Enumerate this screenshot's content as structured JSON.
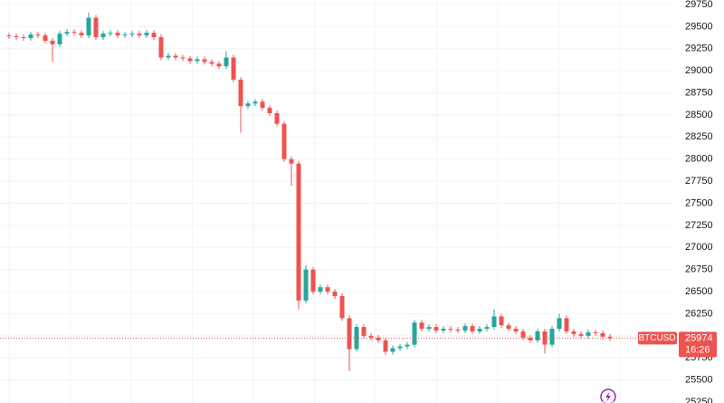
{
  "chart_data": {
    "type": "candlestick",
    "open": [
      29400,
      29390,
      29380,
      29370,
      29410,
      29400,
      29340,
      29300,
      29420,
      29440,
      29430,
      29400,
      29600,
      29380,
      29420,
      29430,
      29400,
      29410,
      29420,
      29400,
      29430,
      29380,
      29150,
      29170,
      29150,
      29140,
      29110,
      29130,
      29100,
      29080,
      29050,
      29150,
      28900,
      28600,
      28630,
      28650,
      28580,
      28520,
      28400,
      28000,
      27950,
      26400,
      26750,
      26500,
      26550,
      26500,
      26450,
      26200,
      25850,
      26100,
      26000,
      25980,
      25950,
      25820,
      25860,
      25880,
      25900,
      26150,
      26080,
      26100,
      26060,
      26080,
      26070,
      26060,
      26110,
      26050,
      26080,
      26100,
      26220,
      26120,
      26080,
      26050,
      25980,
      25950,
      26050,
      25900,
      26080,
      26200,
      26050,
      26020,
      26000,
      26040,
      26030,
      25990
    ],
    "high": [
      29430,
      29420,
      29410,
      29440,
      29440,
      29430,
      29370,
      29450,
      29470,
      29470,
      29460,
      29660,
      29630,
      29450,
      29460,
      29460,
      29440,
      29450,
      29450,
      29460,
      29460,
      29410,
      29200,
      29200,
      29180,
      29170,
      29160,
      29160,
      29130,
      29110,
      29220,
      29180,
      28930,
      28660,
      28680,
      28680,
      28610,
      28550,
      28430,
      28030,
      27980,
      26800,
      26780,
      26580,
      26580,
      26530,
      26480,
      26230,
      26130,
      26130,
      26030,
      26010,
      25980,
      25890,
      25910,
      25930,
      26180,
      26180,
      26130,
      26130,
      26110,
      26110,
      26100,
      26140,
      26140,
      26110,
      26130,
      26300,
      26250,
      26150,
      26110,
      26080,
      26010,
      26080,
      26080,
      26110,
      26250,
      26230,
      26080,
      26050,
      26070,
      26070,
      26060,
      26020
    ],
    "low": [
      29360,
      29350,
      29340,
      29340,
      29370,
      29310,
      29100,
      29270,
      29390,
      29400,
      29370,
      29370,
      29350,
      29350,
      29390,
      29370,
      29370,
      29380,
      29370,
      29370,
      29350,
      29120,
      29120,
      29120,
      29110,
      29080,
      29080,
      29070,
      29050,
      29020,
      29020,
      28870,
      28300,
      28570,
      28600,
      28550,
      28490,
      28370,
      27970,
      27700,
      26300,
      26370,
      26470,
      26470,
      26470,
      26420,
      26170,
      25600,
      25820,
      25970,
      25950,
      25920,
      25790,
      25790,
      25830,
      25850,
      25870,
      26050,
      26050,
      26030,
      26030,
      26040,
      26030,
      26030,
      26020,
      26020,
      26050,
      26070,
      26090,
      26050,
      26020,
      25950,
      25920,
      25920,
      25800,
      25870,
      26050,
      26020,
      25990,
      25970,
      25970,
      26000,
      25960,
      25940
    ],
    "close": [
      29390,
      29380,
      29370,
      29410,
      29400,
      29340,
      29300,
      29420,
      29440,
      29430,
      29400,
      29600,
      29380,
      29420,
      29430,
      29400,
      29410,
      29420,
      29400,
      29430,
      29380,
      29150,
      29170,
      29150,
      29140,
      29110,
      29130,
      29100,
      29080,
      29050,
      29150,
      28900,
      28600,
      28630,
      28650,
      28580,
      28520,
      28400,
      28000,
      27950,
      26400,
      26750,
      26500,
      26550,
      26500,
      26450,
      26200,
      25850,
      26100,
      26000,
      25980,
      25950,
      25820,
      25860,
      25880,
      25900,
      26150,
      26080,
      26100,
      26060,
      26080,
      26070,
      26060,
      26110,
      26050,
      26080,
      26100,
      26220,
      26120,
      26080,
      26050,
      25980,
      25950,
      26050,
      25900,
      26080,
      26200,
      26050,
      26020,
      26000,
      26040,
      26030,
      25990,
      25974
    ],
    "up_color": "#26a69a",
    "down_color": "#ef5350",
    "ylim": [
      25240,
      29801
    ],
    "yticks": [
      25250,
      25500,
      25750,
      26000,
      26250,
      26500,
      26750,
      27000,
      27250,
      27500,
      27750,
      28000,
      28250,
      28500,
      28750,
      29000,
      29250,
      29500,
      29750
    ],
    "grid": true,
    "last_price": {
      "symbol": "BTCUSD",
      "price": 25974,
      "time": "16:26"
    }
  }
}
